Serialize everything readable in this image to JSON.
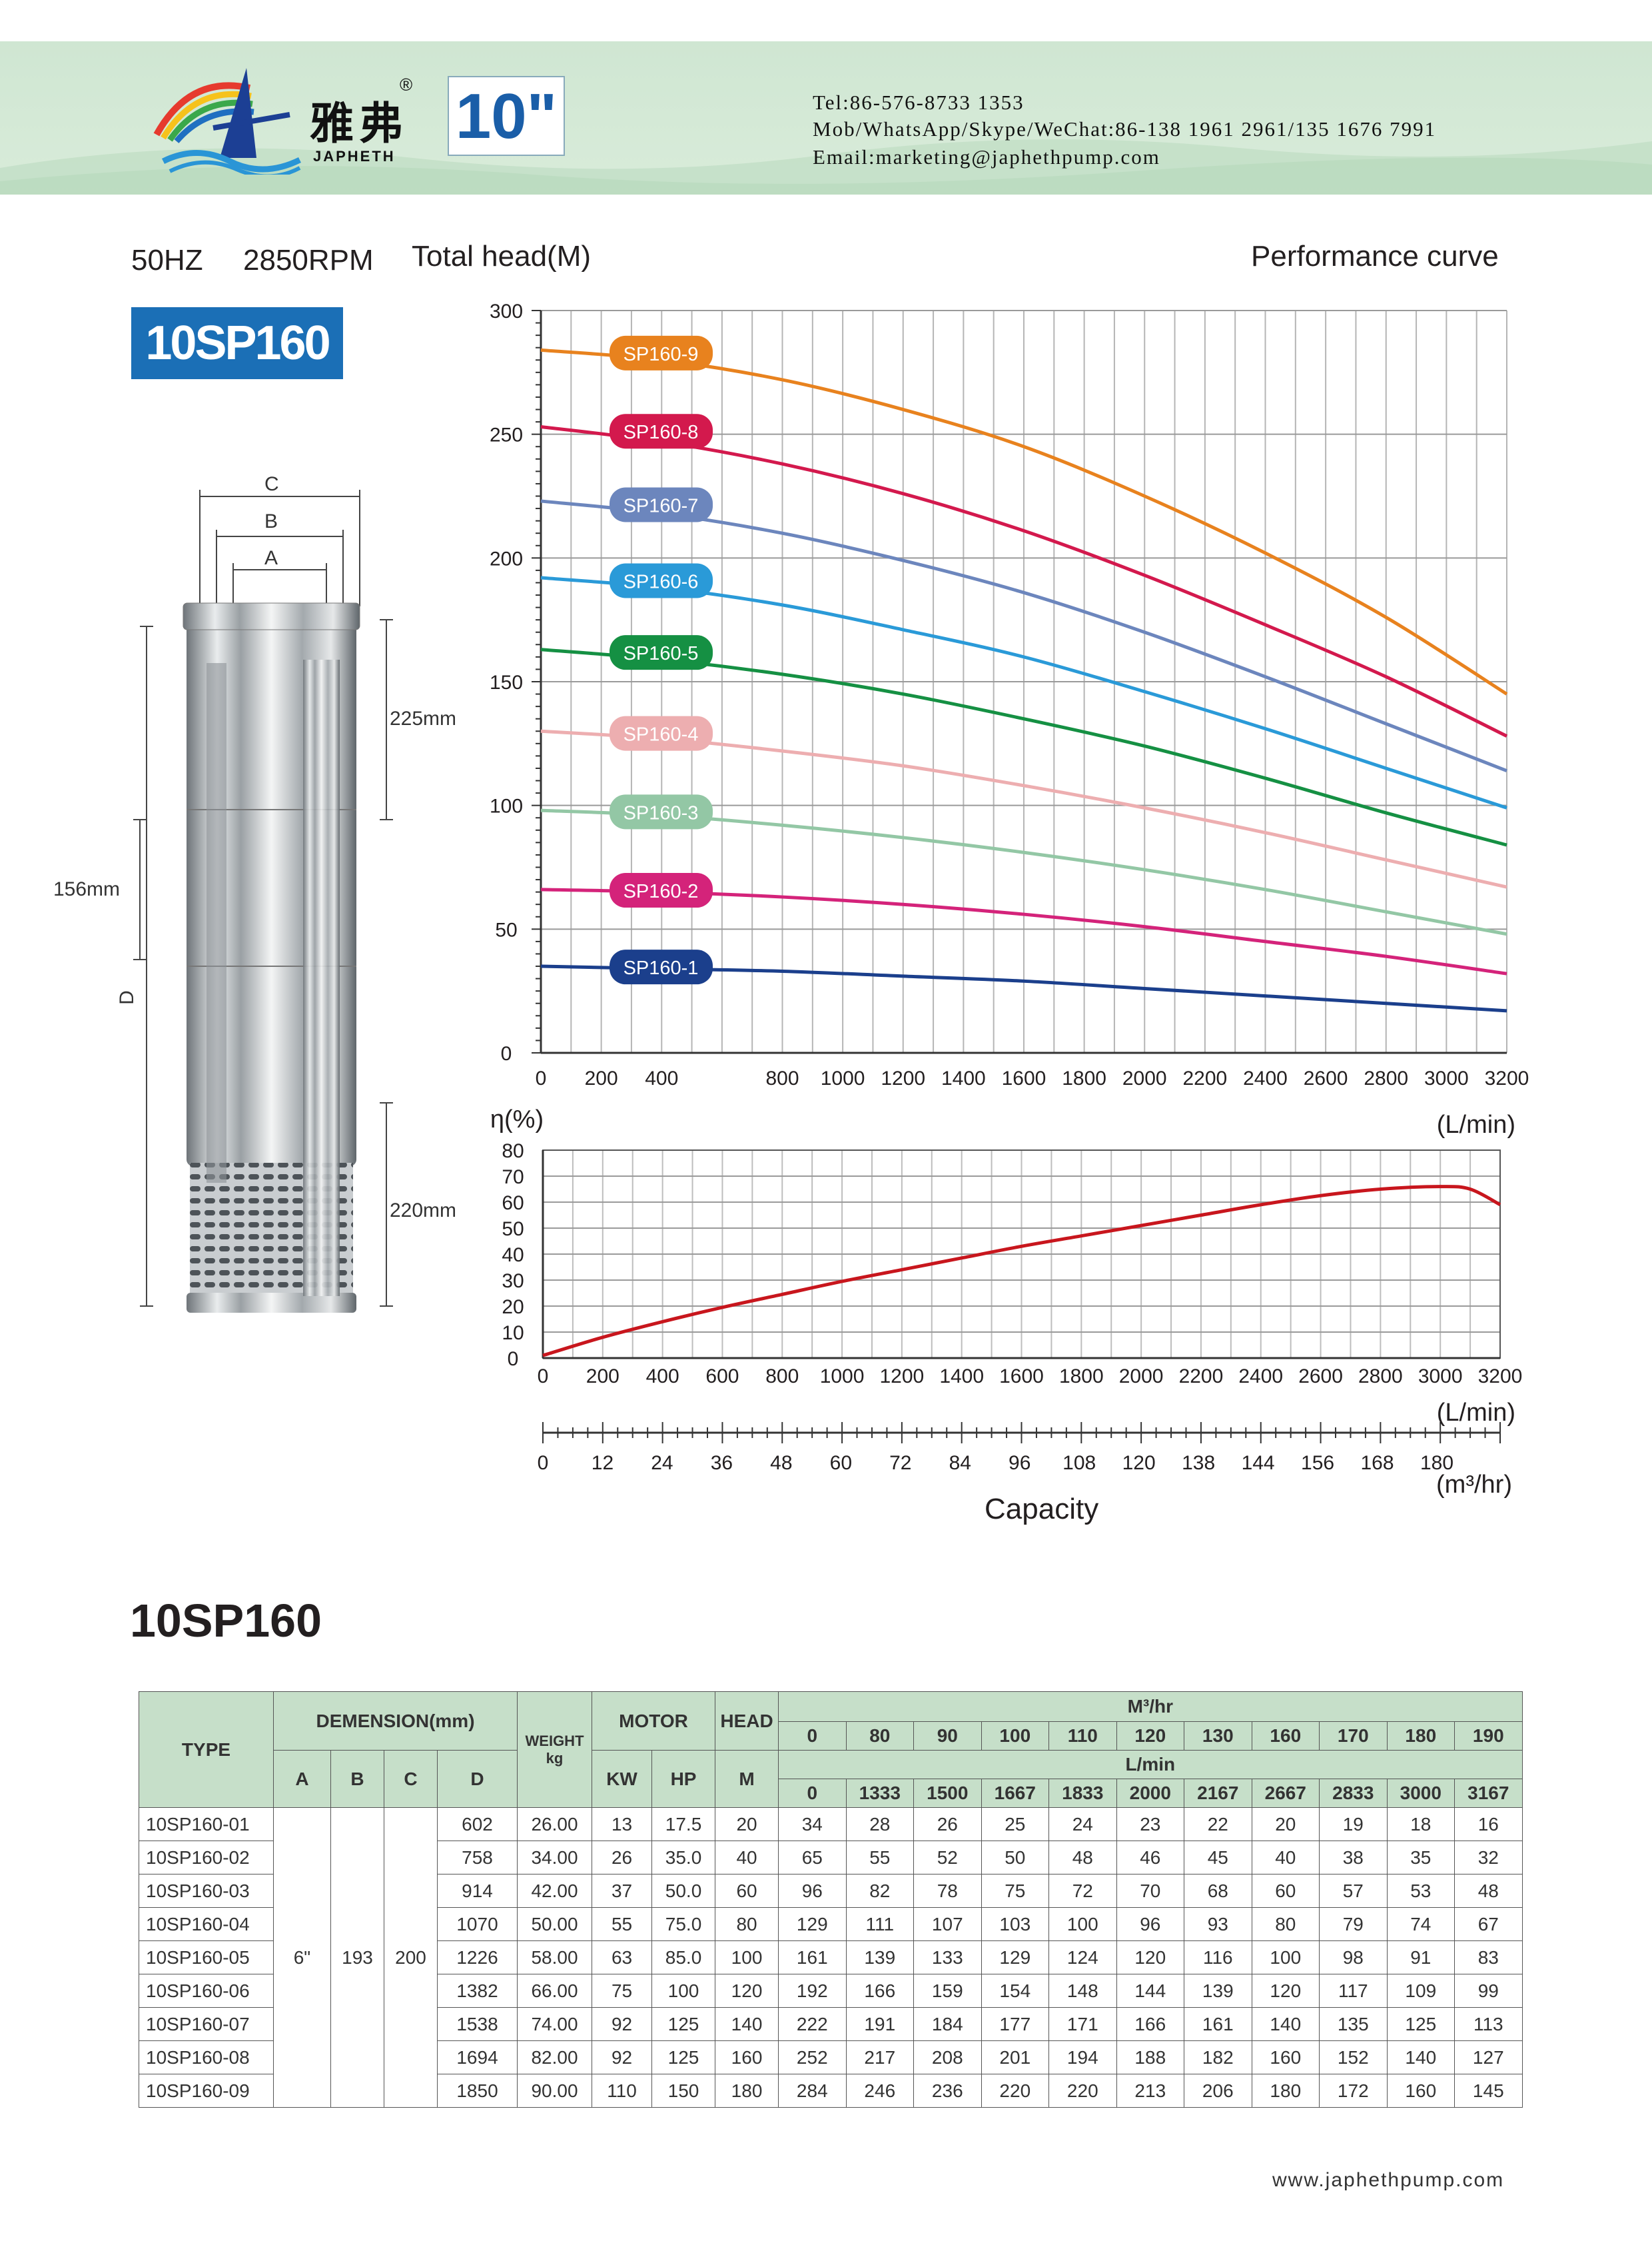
{
  "header": {
    "brand_cn": "雅弗",
    "brand_en": "JAPHETH",
    "reg_mark": "®",
    "size": "10\"",
    "tel": "Tel:86-576-8733 1353",
    "mob": "Mob/WhatsApp/Skype/WeChat:86-138 1961 2961/135 1676 7991",
    "email": "Email:marketing@japhethpump.com",
    "bg_color": "#d4e9d5"
  },
  "spec": {
    "freq": "50HZ",
    "rpm": "2850RPM",
    "model": "10SP160",
    "badge_color": "#1b6fb6"
  },
  "dimensions": {
    "label_c": "C",
    "label_b": "B",
    "label_a": "A",
    "label_d": "D",
    "top": "225mm",
    "mid": "156mm",
    "bottom": "220mm"
  },
  "chart_data": [
    {
      "type": "line",
      "title": "Performance curve",
      "ylabel": "Total head(M)",
      "xlabel": "(L/min)",
      "xlim": [
        0,
        3200
      ],
      "ylim": [
        0,
        300
      ],
      "xticks": [
        0,
        200,
        400,
        800,
        1000,
        1200,
        1400,
        1600,
        1800,
        2000,
        2200,
        2400,
        2600,
        2800,
        3000,
        3200
      ],
      "yticks": [
        0,
        50,
        100,
        150,
        200,
        250,
        300
      ],
      "grid": true,
      "x": [
        0,
        400,
        800,
        1200,
        1600,
        2000,
        2400,
        2800,
        3200
      ],
      "series": [
        {
          "name": "SP160-1",
          "color": "#1b3f8c",
          "values": [
            35,
            34,
            33,
            31,
            29,
            26,
            23,
            20,
            17
          ]
        },
        {
          "name": "SP160-2",
          "color": "#d4237a",
          "values": [
            66,
            65,
            63,
            60,
            56,
            51,
            45,
            39,
            32
          ]
        },
        {
          "name": "SP160-3",
          "color": "#93c7a5",
          "values": [
            98,
            96,
            92,
            87,
            81,
            74,
            66,
            57,
            48
          ]
        },
        {
          "name": "SP160-4",
          "color": "#edaeb0",
          "values": [
            130,
            127,
            122,
            116,
            108,
            99,
            89,
            78,
            67
          ]
        },
        {
          "name": "SP160-5",
          "color": "#159043",
          "values": [
            163,
            159,
            153,
            145,
            135,
            124,
            111,
            97,
            84
          ]
        },
        {
          "name": "SP160-6",
          "color": "#2a9ad8",
          "values": [
            192,
            188,
            181,
            171,
            160,
            146,
            131,
            115,
            99
          ]
        },
        {
          "name": "SP160-7",
          "color": "#6c86bd",
          "values": [
            223,
            218,
            210,
            199,
            186,
            170,
            152,
            133,
            114
          ]
        },
        {
          "name": "SP160-8",
          "color": "#d3194d",
          "values": [
            253,
            247,
            238,
            226,
            211,
            193,
            173,
            152,
            128
          ]
        },
        {
          "name": "SP160-9",
          "color": "#e8821e",
          "values": [
            284,
            280,
            272,
            260,
            245,
            225,
            202,
            176,
            145
          ]
        }
      ]
    },
    {
      "type": "line",
      "ylabel": "η(%)",
      "xlabel": "(L/min)",
      "xlim": [
        0,
        3200
      ],
      "ylim": [
        0,
        80
      ],
      "xticks": [
        0,
        200,
        400,
        600,
        800,
        1000,
        1200,
        1400,
        1600,
        1800,
        2000,
        2200,
        2400,
        2600,
        2800,
        3000,
        3200
      ],
      "yticks": [
        0,
        10,
        20,
        30,
        40,
        50,
        60,
        70,
        80
      ],
      "grid": true,
      "series": [
        {
          "color": "#c8161d",
          "x": [
            0,
            200,
            400,
            600,
            800,
            1000,
            1200,
            1400,
            1600,
            1800,
            2000,
            2200,
            2400,
            2600,
            2800,
            3000,
            3100,
            3200
          ],
          "values": [
            1,
            8,
            14,
            19.5,
            24.5,
            29.5,
            34,
            38.5,
            43,
            47,
            51,
            55,
            59,
            62.5,
            65,
            66,
            65,
            59
          ]
        }
      ]
    }
  ],
  "capacity_axis": {
    "ticks": [
      "0",
      "12",
      "24",
      "36",
      "48",
      "60",
      "72",
      "84",
      "96",
      "108",
      "120",
      "138",
      "144",
      "156",
      "168",
      "180"
    ],
    "label": "Capacity",
    "unit": "(m³/hr)",
    "unit_top": "(L/min)"
  },
  "table": {
    "title": "10SP160",
    "h_type": "TYPE",
    "h_dim": "DEMENSION(mm)",
    "h_weight": "WEIGHT",
    "h_weight_unit": "kg",
    "h_motor": "MOTOR",
    "h_head": "HEAD",
    "h_m3hr": "M³/hr",
    "h_lmin": "L/min",
    "h_a": "A",
    "h_b": "B",
    "h_c": "C",
    "h_d": "D",
    "h_kw": "KW",
    "h_hp": "HP",
    "h_m": "M",
    "m3hr": [
      "0",
      "80",
      "90",
      "100",
      "110",
      "120",
      "130",
      "160",
      "170",
      "180",
      "190"
    ],
    "lmin": [
      "0",
      "1333",
      "1500",
      "1667",
      "1833",
      "2000",
      "2167",
      "2667",
      "2833",
      "3000",
      "3167"
    ],
    "a": "6\"",
    "b": "193",
    "c": "200",
    "rows": [
      {
        "type": "10SP160-01",
        "d": "602",
        "weight": "26.00",
        "kw": "13",
        "hp": "17.5",
        "head": "20",
        "values": [
          "34",
          "28",
          "26",
          "25",
          "24",
          "23",
          "22",
          "20",
          "19",
          "18",
          "16"
        ]
      },
      {
        "type": "10SP160-02",
        "d": "758",
        "weight": "34.00",
        "kw": "26",
        "hp": "35.0",
        "head": "40",
        "values": [
          "65",
          "55",
          "52",
          "50",
          "48",
          "46",
          "45",
          "40",
          "38",
          "35",
          "32"
        ]
      },
      {
        "type": "10SP160-03",
        "d": "914",
        "weight": "42.00",
        "kw": "37",
        "hp": "50.0",
        "head": "60",
        "values": [
          "96",
          "82",
          "78",
          "75",
          "72",
          "70",
          "68",
          "60",
          "57",
          "53",
          "48"
        ]
      },
      {
        "type": "10SP160-04",
        "d": "1070",
        "weight": "50.00",
        "kw": "55",
        "hp": "75.0",
        "head": "80",
        "values": [
          "129",
          "111",
          "107",
          "103",
          "100",
          "96",
          "93",
          "80",
          "79",
          "74",
          "67"
        ]
      },
      {
        "type": "10SP160-05",
        "d": "1226",
        "weight": "58.00",
        "kw": "63",
        "hp": "85.0",
        "head": "100",
        "values": [
          "161",
          "139",
          "133",
          "129",
          "124",
          "120",
          "116",
          "100",
          "98",
          "91",
          "83"
        ]
      },
      {
        "type": "10SP160-06",
        "d": "1382",
        "weight": "66.00",
        "kw": "75",
        "hp": "100",
        "head": "120",
        "values": [
          "192",
          "166",
          "159",
          "154",
          "148",
          "144",
          "139",
          "120",
          "117",
          "109",
          "99"
        ]
      },
      {
        "type": "10SP160-07",
        "d": "1538",
        "weight": "74.00",
        "kw": "92",
        "hp": "125",
        "head": "140",
        "values": [
          "222",
          "191",
          "184",
          "177",
          "171",
          "166",
          "161",
          "140",
          "135",
          "125",
          "113"
        ]
      },
      {
        "type": "10SP160-08",
        "d": "1694",
        "weight": "82.00",
        "kw": "92",
        "hp": "125",
        "head": "160",
        "values": [
          "252",
          "217",
          "208",
          "201",
          "194",
          "188",
          "182",
          "160",
          "152",
          "140",
          "127"
        ]
      },
      {
        "type": "10SP160-09",
        "d": "1850",
        "weight": "90.00",
        "kw": "110",
        "hp": "150",
        "head": "180",
        "values": [
          "284",
          "246",
          "236",
          "220",
          "220",
          "213",
          "206",
          "180",
          "172",
          "160",
          "145"
        ]
      }
    ]
  },
  "footer": {
    "website": "www.japhethpump.com"
  }
}
